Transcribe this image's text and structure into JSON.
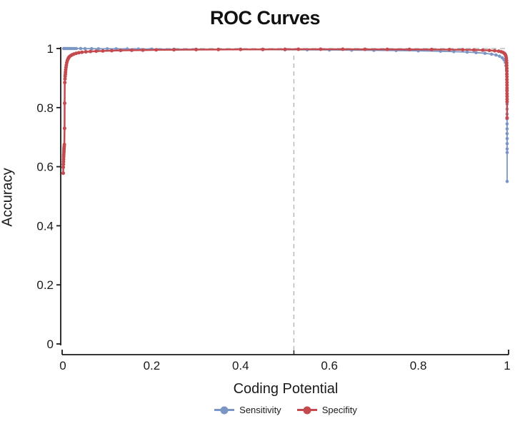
{
  "chart_data": {
    "type": "line",
    "title": "ROC Curves",
    "xlabel": "Coding Potential",
    "ylabel": "Accuracy",
    "xlim": [
      0,
      1
    ],
    "ylim": [
      0,
      1
    ],
    "x_ticks": [
      0,
      0.2,
      0.4,
      0.6,
      0.8,
      1
    ],
    "y_ticks": [
      0,
      0.2,
      0.4,
      0.6,
      0.8,
      1
    ],
    "grid": false,
    "legend_position": "bottom-center",
    "axis_color": "#1a1a1a",
    "tick_label_color": "#1a1a1a",
    "reference_lines": {
      "horizontal_dashed_y": 1.0,
      "vertical_dashed_x": 0.52,
      "color": "#b0b0b0",
      "style": "dashed"
    },
    "series": [
      {
        "name": "Sensitivity",
        "color": "#7b96c4",
        "marker": "circle",
        "points": [
          [
            0.002,
            1.0
          ],
          [
            0.005,
            1.0
          ],
          [
            0.008,
            1.0
          ],
          [
            0.012,
            1.0
          ],
          [
            0.016,
            1.0
          ],
          [
            0.02,
            1.0
          ],
          [
            0.025,
            1.0
          ],
          [
            0.03,
            1.0
          ],
          [
            0.04,
            1.0
          ],
          [
            0.05,
            0.9995
          ],
          [
            0.065,
            0.9995
          ],
          [
            0.08,
            0.999
          ],
          [
            0.1,
            0.999
          ],
          [
            0.12,
            0.999
          ],
          [
            0.145,
            0.9985
          ],
          [
            0.17,
            0.9982
          ],
          [
            0.2,
            0.998
          ],
          [
            0.25,
            0.9977
          ],
          [
            0.3,
            0.9974
          ],
          [
            0.35,
            0.9971
          ],
          [
            0.4,
            0.9968
          ],
          [
            0.45,
            0.9964
          ],
          [
            0.5,
            0.996
          ],
          [
            0.55,
            0.9956
          ],
          [
            0.6,
            0.9951
          ],
          [
            0.65,
            0.9946
          ],
          [
            0.7,
            0.994
          ],
          [
            0.75,
            0.9932
          ],
          [
            0.8,
            0.9922
          ],
          [
            0.85,
            0.9908
          ],
          [
            0.88,
            0.9895
          ],
          [
            0.91,
            0.988
          ],
          [
            0.93,
            0.9862
          ],
          [
            0.95,
            0.9838
          ],
          [
            0.965,
            0.981
          ],
          [
            0.975,
            0.978
          ],
          [
            0.983,
            0.974
          ],
          [
            0.989,
            0.9685
          ],
          [
            0.993,
            0.962
          ],
          [
            0.996,
            0.953
          ],
          [
            0.9975,
            0.942
          ],
          [
            0.9985,
            0.928
          ],
          [
            0.999,
            0.912
          ],
          [
            0.9993,
            0.896
          ],
          [
            0.9995,
            0.878
          ],
          [
            0.9996,
            0.862
          ],
          [
            0.9997,
            0.845
          ],
          [
            0.9997,
            0.828
          ],
          [
            0.9998,
            0.812
          ],
          [
            0.9998,
            0.795
          ],
          [
            0.9998,
            0.778
          ],
          [
            0.9999,
            0.762
          ],
          [
            0.9999,
            0.745
          ],
          [
            0.9999,
            0.728
          ],
          [
            0.9999,
            0.712
          ],
          [
            1.0,
            0.695
          ],
          [
            1.0,
            0.678
          ],
          [
            1.0,
            0.66
          ],
          [
            1.0,
            0.648
          ],
          [
            1.0,
            0.55
          ]
        ]
      },
      {
        "name": "Specifity",
        "color": "#c44a4f",
        "marker": "circle",
        "points": [
          [
            0.0008,
            0.578
          ],
          [
            0.001,
            0.598
          ],
          [
            0.0012,
            0.608
          ],
          [
            0.0014,
            0.617
          ],
          [
            0.0016,
            0.625
          ],
          [
            0.0018,
            0.633
          ],
          [
            0.002,
            0.64
          ],
          [
            0.0022,
            0.647
          ],
          [
            0.0024,
            0.653
          ],
          [
            0.0026,
            0.659
          ],
          [
            0.0028,
            0.664
          ],
          [
            0.003,
            0.669
          ],
          [
            0.0034,
            0.675
          ],
          [
            0.0038,
            0.73
          ],
          [
            0.004,
            0.815
          ],
          [
            0.0044,
            0.885
          ],
          [
            0.0048,
            0.897
          ],
          [
            0.0052,
            0.906
          ],
          [
            0.0056,
            0.913
          ],
          [
            0.006,
            0.92
          ],
          [
            0.0065,
            0.928
          ],
          [
            0.007,
            0.936
          ],
          [
            0.0078,
            0.944
          ],
          [
            0.0088,
            0.952
          ],
          [
            0.01,
            0.959
          ],
          [
            0.0115,
            0.9645
          ],
          [
            0.013,
            0.969
          ],
          [
            0.015,
            0.9728
          ],
          [
            0.018,
            0.9762
          ],
          [
            0.021,
            0.979
          ],
          [
            0.025,
            0.9815
          ],
          [
            0.03,
            0.9838
          ],
          [
            0.036,
            0.9858
          ],
          [
            0.043,
            0.9875
          ],
          [
            0.052,
            0.9889
          ],
          [
            0.062,
            0.99
          ],
          [
            0.075,
            0.991
          ],
          [
            0.09,
            0.9919
          ],
          [
            0.11,
            0.9928
          ],
          [
            0.13,
            0.9936
          ],
          [
            0.155,
            0.9943
          ],
          [
            0.18,
            0.9948
          ],
          [
            0.21,
            0.9953
          ],
          [
            0.25,
            0.9958
          ],
          [
            0.3,
            0.9963
          ],
          [
            0.35,
            0.9967
          ],
          [
            0.4,
            0.997
          ],
          [
            0.45,
            0.9972
          ],
          [
            0.5,
            0.9974
          ],
          [
            0.53,
            0.9975
          ],
          [
            0.58,
            0.9975
          ],
          [
            0.63,
            0.9975
          ],
          [
            0.68,
            0.9974
          ],
          [
            0.73,
            0.9972
          ],
          [
            0.78,
            0.997
          ],
          [
            0.83,
            0.9967
          ],
          [
            0.87,
            0.9963
          ],
          [
            0.9,
            0.9958
          ],
          [
            0.925,
            0.9952
          ],
          [
            0.945,
            0.9945
          ],
          [
            0.96,
            0.9936
          ],
          [
            0.972,
            0.9925
          ],
          [
            0.981,
            0.991
          ],
          [
            0.987,
            0.989
          ],
          [
            0.991,
            0.9865
          ],
          [
            0.994,
            0.9832
          ],
          [
            0.996,
            0.979
          ],
          [
            0.9972,
            0.974
          ],
          [
            0.998,
            0.9675
          ],
          [
            0.9985,
            0.96
          ],
          [
            0.9988,
            0.9515
          ],
          [
            0.999,
            0.9425
          ],
          [
            0.9992,
            0.933
          ],
          [
            0.9993,
            0.9235
          ],
          [
            0.9994,
            0.914
          ],
          [
            0.9995,
            0.9045
          ],
          [
            0.9995,
            0.895
          ],
          [
            0.9996,
            0.8855
          ],
          [
            0.9996,
            0.876
          ],
          [
            0.9997,
            0.8665
          ],
          [
            0.9997,
            0.857
          ],
          [
            0.9997,
            0.8475
          ],
          [
            0.9998,
            0.838
          ],
          [
            0.9998,
            0.8285
          ],
          [
            0.9998,
            0.82
          ],
          [
            0.9999,
            0.765
          ]
        ]
      }
    ]
  }
}
